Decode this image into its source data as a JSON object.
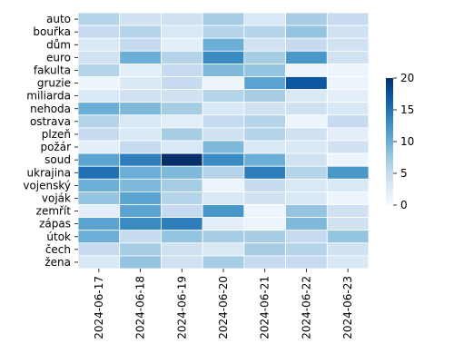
{
  "chart_data": {
    "type": "heatmap",
    "title": "",
    "xlabel": "",
    "ylabel": "",
    "colormap": "Blues",
    "colors": {
      "low": "#f7fbff",
      "high": "#08306b",
      "cell_border": "#ffffff"
    },
    "x": [
      "2024-06-17",
      "2024-06-18",
      "2024-06-19",
      "2024-06-20",
      "2024-06-21",
      "2024-06-22",
      "2024-06-23"
    ],
    "y": [
      "auto",
      "bouřka",
      "dům",
      "euro",
      "fakulta",
      "gruzie",
      "miliarda",
      "nehoda",
      "ostrava",
      "plzeň",
      "požár",
      "soud",
      "ukrajina",
      "vojenský",
      "voják",
      "zemřít",
      "zápas",
      "útok",
      "čech",
      "žena"
    ],
    "values": [
      [
        6,
        4,
        4,
        7,
        3,
        7,
        5
      ],
      [
        5,
        6,
        3,
        6,
        6,
        8,
        4
      ],
      [
        3,
        5,
        2,
        10,
        4,
        5,
        4
      ],
      [
        4,
        10,
        6,
        13,
        7,
        12,
        4
      ],
      [
        6,
        2,
        5,
        9,
        8,
        1,
        1
      ],
      [
        1,
        3,
        5,
        1,
        11,
        17,
        1
      ],
      [
        3,
        4,
        4,
        6,
        7,
        3,
        2
      ],
      [
        10,
        9,
        7,
        3,
        4,
        4,
        3
      ],
      [
        6,
        3,
        2,
        5,
        6,
        1,
        5
      ],
      [
        5,
        3,
        7,
        4,
        6,
        4,
        2
      ],
      [
        2,
        5,
        3,
        9,
        3,
        3,
        4
      ],
      [
        11,
        14,
        20,
        13,
        10,
        4,
        1
      ],
      [
        15,
        10,
        9,
        6,
        14,
        6,
        12
      ],
      [
        10,
        9,
        7,
        1,
        5,
        3,
        3
      ],
      [
        8,
        11,
        6,
        3,
        4,
        3,
        1
      ],
      [
        2,
        11,
        5,
        12,
        1,
        8,
        4
      ],
      [
        11,
        13,
        14,
        2,
        1,
        9,
        4
      ],
      [
        10,
        5,
        8,
        7,
        7,
        5,
        8
      ],
      [
        5,
        7,
        4,
        3,
        7,
        6,
        4
      ],
      [
        3,
        8,
        4,
        7,
        5,
        5,
        3
      ]
    ],
    "vmin": 0,
    "vmax": 20,
    "colorbar_ticks": [
      "0",
      "5",
      "10",
      "15",
      "20"
    ],
    "grid": false,
    "legend": "colorbar-right"
  }
}
